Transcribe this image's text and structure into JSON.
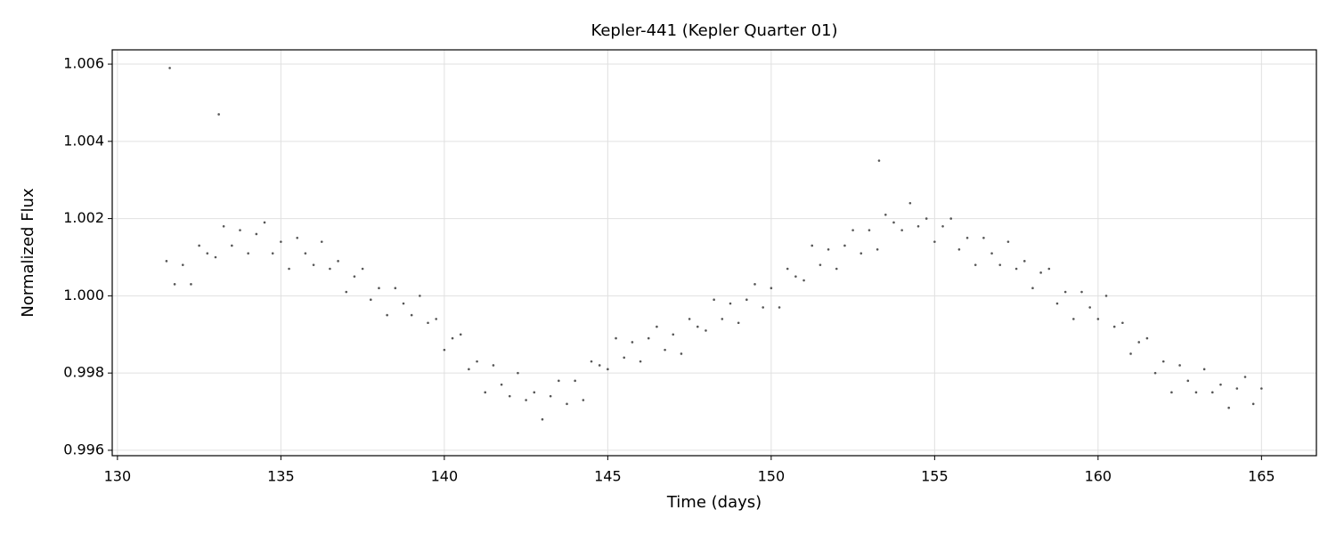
{
  "chart_data": {
    "type": "scatter",
    "title": "Kepler-441 (Kepler Quarter 01)",
    "x_label": "Time (days)",
    "y_label": "Normalized Flux",
    "color": "#444444",
    "grid": true,
    "xlim": [
      129.84,
      166.68
    ],
    "ylim": [
      0.99586,
      1.00637
    ],
    "xticks": [
      130,
      135,
      140,
      145,
      150,
      155,
      160,
      165
    ],
    "yticks": [
      0.996,
      0.998,
      {
        "value": 1,
        "label": "1.000"
      },
      1.002,
      1.004,
      1.006
    ],
    "x": [
      131.5,
      131.75,
      132,
      132.25,
      132.5,
      132.75,
      133,
      133.25,
      133.5,
      133.75,
      134,
      134.25,
      134.5,
      134.75,
      135,
      135.25,
      135.5,
      135.75,
      136,
      136.25,
      136.5,
      136.75,
      137,
      137.25,
      137.5,
      137.75,
      138,
      138.25,
      138.5,
      138.75,
      139,
      139.25,
      139.5,
      139.75,
      140,
      140.25,
      140.5,
      140.75,
      141,
      141.25,
      141.5,
      141.75,
      142,
      142.25,
      142.5,
      142.75,
      143,
      143.25,
      143.5,
      143.75,
      144,
      144.25,
      144.5,
      144.75,
      145,
      145.25,
      145.5,
      145.75,
      146,
      146.25,
      146.5,
      146.75,
      147,
      147.25,
      147.5,
      147.75,
      148,
      148.25,
      148.5,
      148.75,
      149,
      149.25,
      149.5,
      149.75,
      150,
      150.25,
      150.5,
      150.75,
      151,
      151.25,
      151.5,
      151.75,
      152,
      152.25,
      152.5,
      152.75,
      153,
      153.25,
      153.5,
      153.75,
      154,
      154.25,
      154.5,
      154.75,
      155,
      155.25,
      155.5,
      155.75,
      156,
      156.25,
      156.5,
      156.75,
      157,
      157.25,
      157.5,
      157.75,
      158,
      158.25,
      158.5,
      158.75,
      159,
      159.25,
      159.5,
      159.75,
      160,
      160.25,
      160.5,
      160.75,
      161,
      161.25,
      161.5,
      161.75,
      162,
      162.25,
      162.5,
      162.75,
      163,
      163.25,
      163.5,
      163.75,
      164,
      164.25,
      164.5,
      164.75,
      165,
      131.6,
      133.1,
      153.3
    ],
    "values": [
      1.0009,
      1.0003,
      1.0008,
      1.0003,
      1.0013,
      1.0011,
      1.001,
      1.0018,
      1.0013,
      1.0017,
      1.0011,
      1.0016,
      1.0019,
      1.0011,
      1.0014,
      1.0007,
      1.0015,
      1.0011,
      1.0008,
      1.0014,
      1.0007,
      1.0009,
      1.0001,
      1.0005,
      1.0007,
      0.9999,
      1.0002,
      0.9995,
      1.0002,
      0.9998,
      0.9995,
      1.0,
      0.9993,
      0.9994,
      0.9986,
      0.9989,
      0.999,
      0.9981,
      0.9983,
      0.9975,
      0.9982,
      0.9977,
      0.9974,
      0.998,
      0.9973,
      0.9975,
      0.9968,
      0.9974,
      0.9978,
      0.9972,
      0.9978,
      0.9973,
      0.9983,
      0.9982,
      0.9981,
      0.9989,
      0.9984,
      0.9988,
      0.9983,
      0.9989,
      0.9992,
      0.9986,
      0.999,
      0.9985,
      0.9994,
      0.9992,
      0.9991,
      0.9999,
      0.9994,
      0.9998,
      0.9993,
      0.9999,
      1.0003,
      0.9997,
      1.0002,
      0.9997,
      1.0007,
      1.0005,
      1.0004,
      1.0013,
      1.0008,
      1.0012,
      1.0007,
      1.0013,
      1.0017,
      1.0011,
      1.0017,
      1.0012,
      1.0021,
      1.0019,
      1.0017,
      1.0024,
      1.0018,
      1.002,
      1.0014,
      1.0018,
      1.002,
      1.0012,
      1.0015,
      1.0008,
      1.0015,
      1.0011,
      1.0008,
      1.0014,
      1.0007,
      1.0009,
      1.0002,
      1.0006,
      1.0007,
      0.9998,
      1.0001,
      0.9994,
      1.0001,
      0.9997,
      0.9994,
      1.0,
      0.9992,
      0.9993,
      0.9985,
      0.9988,
      0.9989,
      0.998,
      0.9983,
      0.9975,
      0.9982,
      0.9978,
      0.9975,
      0.9981,
      0.9975,
      0.9977,
      0.9971,
      0.9976,
      0.9979,
      0.9972,
      0.9976,
      1.0059,
      1.0047,
      1.0035
    ]
  }
}
